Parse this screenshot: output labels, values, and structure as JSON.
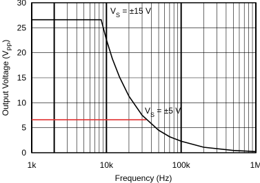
{
  "chart_data": {
    "type": "line",
    "xlabel": "Frequency (Hz)",
    "ylabel": [
      "Output Voltage (V",
      "PP",
      ")"
    ],
    "xscale": "log",
    "xlim": [
      1000,
      1000000
    ],
    "xticks": [
      {
        "value": 1000,
        "label": "1k"
      },
      {
        "value": 10000,
        "label": "10k"
      },
      {
        "value": 100000,
        "label": "100k"
      },
      {
        "value": 1000000,
        "label": "1M"
      }
    ],
    "ylim": [
      0,
      30
    ],
    "yticks": [
      0,
      5,
      10,
      15,
      20,
      25,
      30
    ],
    "grid": true,
    "series": [
      {
        "color": "#e03030",
        "x": [
          1000,
          34000
        ],
        "values": [
          6.6,
          6.6
        ]
      },
      {
        "color": "#000000",
        "x": [
          1000,
          8500,
          10000,
          12000,
          15000,
          20000,
          30000,
          50000,
          70000,
          100000,
          200000,
          500000,
          1000000
        ],
        "values": [
          26.6,
          26.6,
          22.6,
          18.8,
          15.1,
          11.3,
          7.5,
          4.5,
          3.2,
          2.3,
          1.1,
          0.45,
          0.23
        ]
      }
    ],
    "annotations": [
      [
        "V",
        "S",
        " = ±15 V"
      ],
      [
        "V",
        "S",
        " = ±5 V"
      ]
    ]
  }
}
